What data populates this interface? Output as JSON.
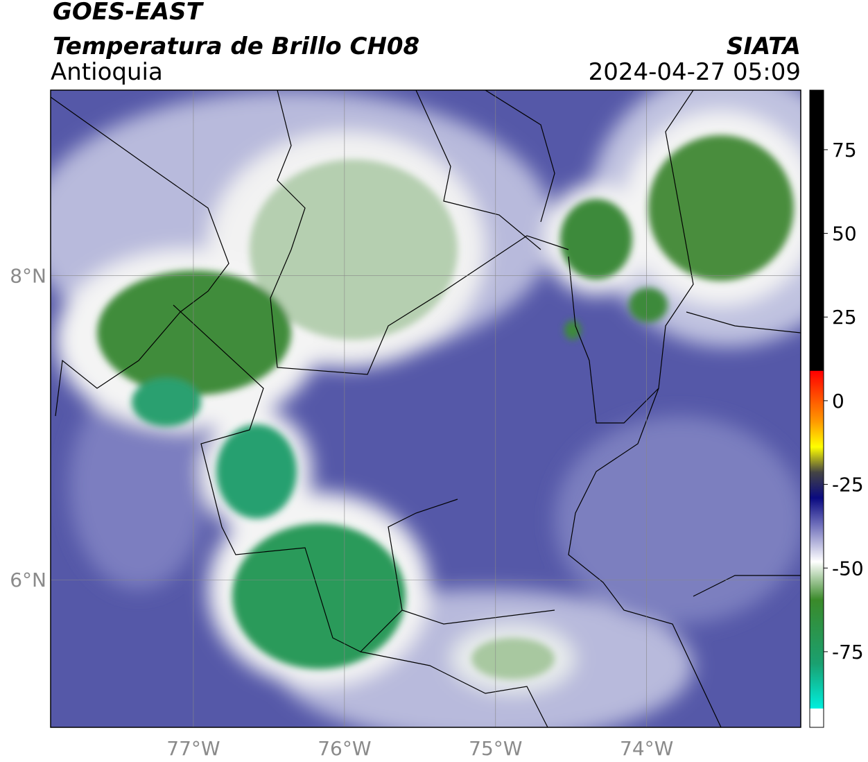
{
  "header": {
    "title": "GOES-EAST",
    "subtitle": "Temperatura de Brillo CH08",
    "region": "Antioquia",
    "source": "SIATA",
    "datetime": "2024-04-27 05:09"
  },
  "map": {
    "lonlim": [
      -77.945,
      -72.98
    ],
    "latlim": [
      5.03,
      9.22
    ],
    "lon_ticks": [
      {
        "value": -77,
        "label": "77°W"
      },
      {
        "value": -76,
        "label": "76°W"
      },
      {
        "value": -75,
        "label": "75°W"
      },
      {
        "value": -74,
        "label": "74°W"
      }
    ],
    "lat_ticks": [
      {
        "value": 8,
        "label": "8°N"
      },
      {
        "value": 6,
        "label": "6°N"
      }
    ]
  },
  "colorbar": {
    "lim": [
      -97.6,
      92.8
    ],
    "ticks": [
      75,
      50,
      25,
      0,
      -25,
      -50,
      -75
    ]
  }
}
